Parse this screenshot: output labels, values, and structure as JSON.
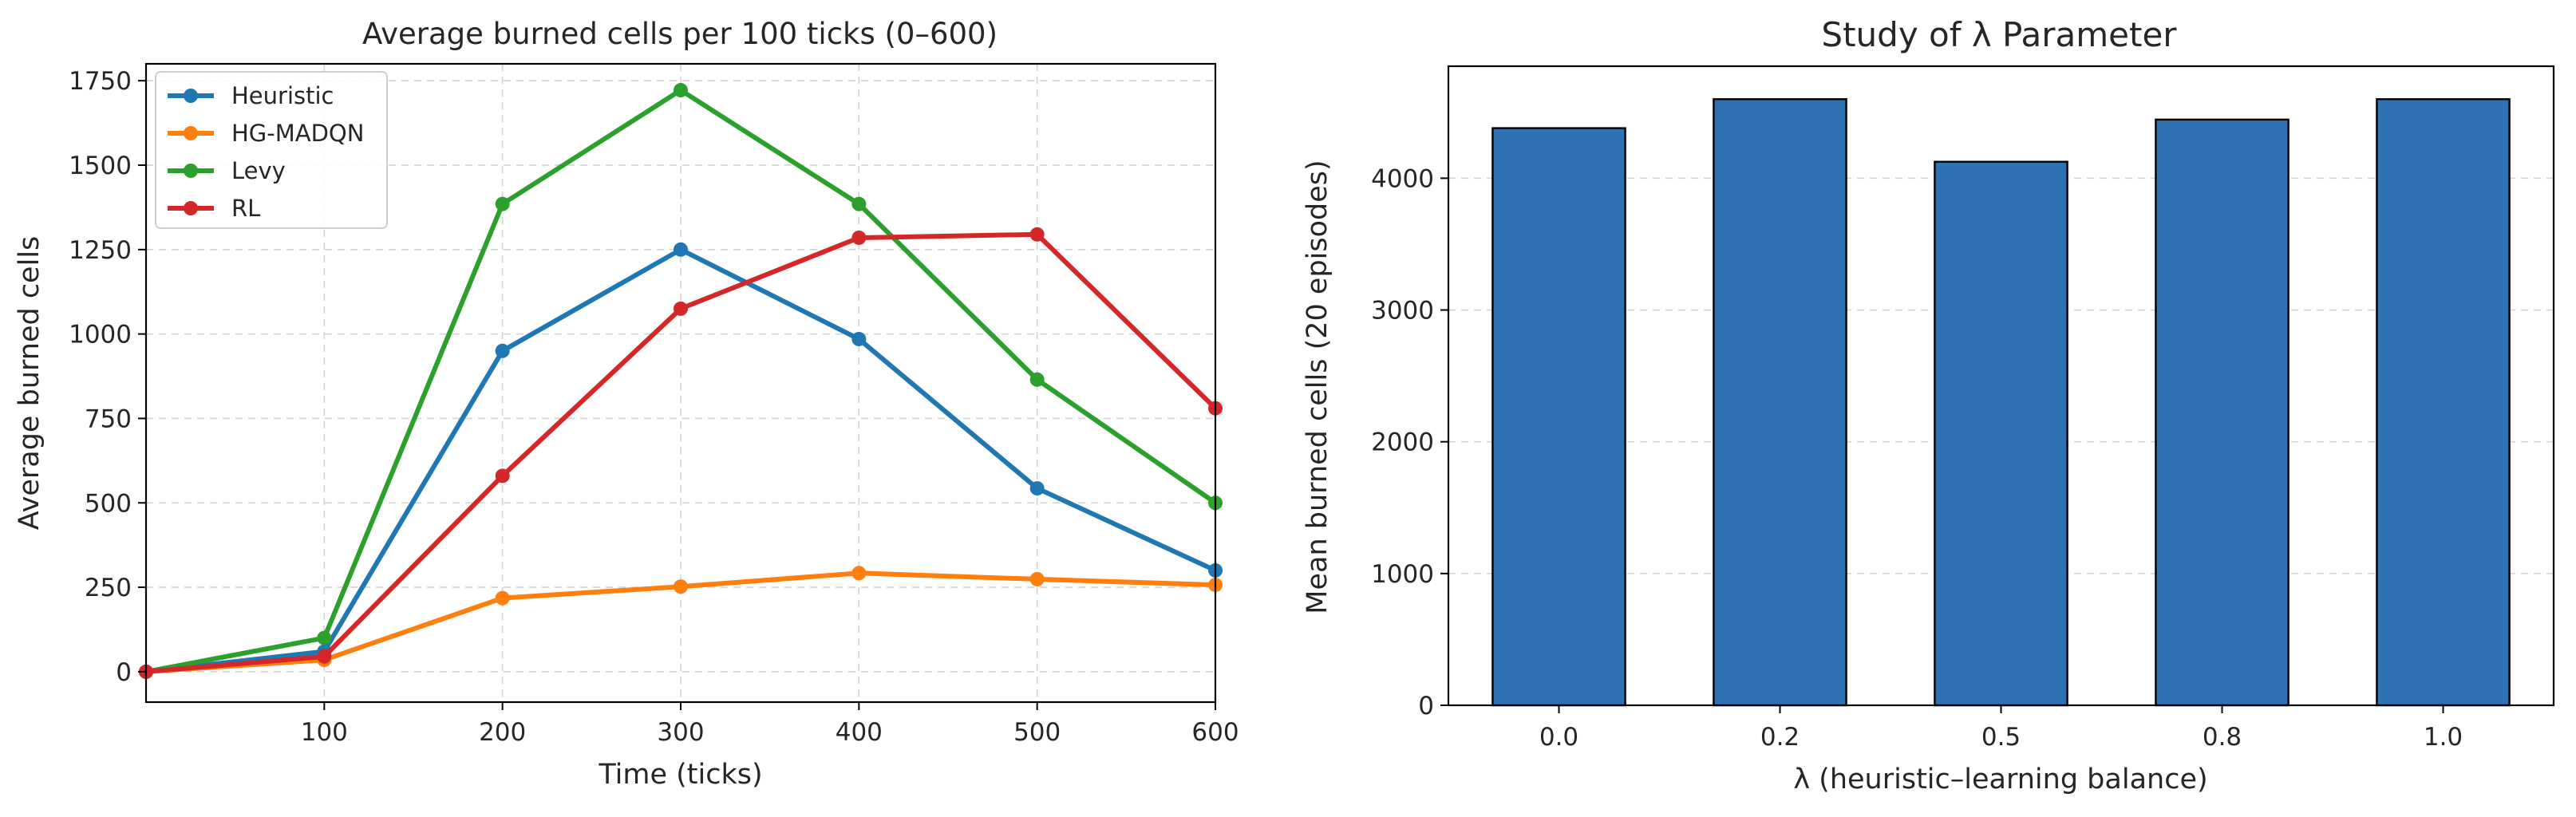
{
  "chart_data": [
    {
      "type": "line",
      "title": "Average burned cells per 100 ticks (0–600)",
      "xlabel": "Time (ticks)",
      "ylabel": "Average burned cells",
      "x": [
        0,
        100,
        200,
        300,
        400,
        500,
        600
      ],
      "xlim": [
        0,
        600
      ],
      "ylim": [
        -90,
        1800
      ],
      "xticks": [
        "100",
        "200",
        "300",
        "400",
        "500",
        "600"
      ],
      "xtick_values": [
        100,
        200,
        300,
        400,
        500,
        600
      ],
      "yticks": [
        "0",
        "250",
        "500",
        "750",
        "1000",
        "1250",
        "1500",
        "1750"
      ],
      "ytick_values": [
        0,
        250,
        500,
        750,
        1000,
        1250,
        1500,
        1750
      ],
      "grid": true,
      "legend_position": "top-left",
      "series": [
        {
          "name": "Heuristic",
          "color": "#1f77b4",
          "values": [
            0,
            60,
            950,
            1250,
            985,
            543,
            300
          ]
        },
        {
          "name": "HG-MADQN",
          "color": "#ff7f0e",
          "values": [
            0,
            35,
            218,
            252,
            292,
            274,
            257
          ]
        },
        {
          "name": "Levy",
          "color": "#2ca02c",
          "values": [
            0,
            100,
            1385,
            1722,
            1385,
            865,
            500
          ]
        },
        {
          "name": "RL",
          "color": "#d62728",
          "values": [
            0,
            45,
            580,
            1075,
            1285,
            1295,
            780
          ]
        }
      ]
    },
    {
      "type": "bar",
      "title": "Study of λ Parameter",
      "xlabel": "λ (heuristic–learning balance)",
      "ylabel": "Mean burned cells (20 episodes)",
      "categories": [
        "0.0",
        "0.2",
        "0.5",
        "0.8",
        "1.0"
      ],
      "values": [
        4380,
        4600,
        4125,
        4445,
        4600
      ],
      "ylim": [
        0,
        4850
      ],
      "yticks": [
        "0",
        "1000",
        "2000",
        "3000",
        "4000"
      ],
      "ytick_values": [
        0,
        1000,
        2000,
        3000,
        4000
      ],
      "bar_color": "#2e72b4",
      "grid": true
    }
  ]
}
